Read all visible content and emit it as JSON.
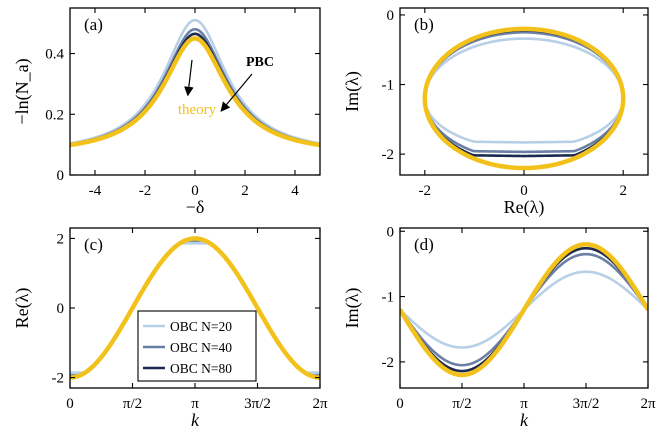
{
  "colors": {
    "n20": "#b8cfe8",
    "n40": "#6a7fa6",
    "n80": "#1b2a4e",
    "pbc": "#000000",
    "theory": "#f2c21b"
  },
  "chart_data": [
    {
      "id": "a",
      "type": "line",
      "panel_label": "(a)",
      "xlabel": "−δ",
      "ylabel": "−ln(N_a)",
      "xlim": [
        -5,
        5
      ],
      "ylim": [
        0,
        0.55
      ],
      "xticks": [
        -4,
        -2,
        0,
        2,
        4
      ],
      "xtick_labels": [
        "-4",
        "-2",
        "0",
        "2",
        "4"
      ],
      "yticks": [
        0,
        0.2,
        0.4
      ],
      "ytick_labels": [
        "0",
        "0.2",
        "0.4"
      ],
      "model": "lorentz",
      "series": [
        {
          "name": "OBC N=20",
          "color_key": "n20",
          "peak": 0.51
        },
        {
          "name": "OBC N=40",
          "color_key": "n40",
          "peak": 0.48
        },
        {
          "name": "OBC N=80",
          "color_key": "n80",
          "peak": 0.465
        },
        {
          "name": "PBC",
          "color_key": "pbc",
          "peak": 0.45,
          "dashed": true
        },
        {
          "name": "theory",
          "color_key": "theory",
          "peak": 0.45,
          "theory": true
        }
      ],
      "annotations": {
        "pbc_label": "PBC",
        "theory_label": "theory"
      }
    },
    {
      "id": "b",
      "type": "line",
      "panel_label": "(b)",
      "xlabel": "Re(λ)",
      "ylabel": "Im(λ)",
      "xlim": [
        -2.5,
        2.5
      ],
      "ylim": [
        -2.3,
        0.1
      ],
      "xticks": [
        -2,
        0,
        2
      ],
      "xtick_labels": [
        "-2",
        "0",
        "2"
      ],
      "yticks": [
        -2,
        -1,
        0
      ],
      "ytick_labels": [
        "-2",
        "-1",
        "0"
      ],
      "model": "ellipse",
      "series": [
        {
          "name": "OBC N=20",
          "color_key": "n20",
          "a": 2.0,
          "b": 0.72
        },
        {
          "name": "OBC N=40",
          "color_key": "n40",
          "a": 2.0,
          "b": 0.88
        },
        {
          "name": "OBC N=80",
          "color_key": "n80",
          "a": 2.0,
          "b": 0.95
        },
        {
          "name": "PBC",
          "color_key": "pbc",
          "a": 2.0,
          "b": 1.0,
          "dashed": true
        },
        {
          "name": "theory",
          "color_key": "theory",
          "a": 2.0,
          "b": 1.0,
          "theory": true
        }
      ]
    },
    {
      "id": "c",
      "type": "line",
      "panel_label": "(c)",
      "xlabel": "k",
      "ylabel": "Re(λ)",
      "xlim": [
        0,
        6.2832
      ],
      "ylim": [
        -2.3,
        2.3
      ],
      "xticks": [
        0,
        1.5708,
        3.1416,
        4.7124,
        6.2832
      ],
      "xtick_labels": [
        "0",
        "π/2",
        "π",
        "3π/2",
        "2π"
      ],
      "yticks": [
        -2,
        0,
        2
      ],
      "ytick_labels": [
        "-2",
        "0",
        "2"
      ],
      "model": "cosine",
      "series": [
        {
          "name": "OBC N=20",
          "color_key": "n20",
          "flat": 0.93
        },
        {
          "name": "OBC N=40",
          "color_key": "n40",
          "flat": 0.97
        },
        {
          "name": "OBC N=80",
          "color_key": "n80",
          "flat": 0.99
        },
        {
          "name": "PBC",
          "color_key": "pbc",
          "flat": 1.0,
          "dashed": true
        },
        {
          "name": "theory",
          "color_key": "theory",
          "flat": 1.0,
          "theory": true
        }
      ],
      "legend": {
        "placement": "bottom-center",
        "entries": [
          {
            "label": "OBC N=20",
            "color_key": "n20"
          },
          {
            "label": "OBC N=40",
            "color_key": "n40"
          },
          {
            "label": "OBC N=80",
            "color_key": "n80"
          }
        ]
      }
    },
    {
      "id": "d",
      "type": "line",
      "panel_label": "(d)",
      "xlabel": "k",
      "ylabel": "Im(λ)",
      "xlim": [
        0,
        6.2832
      ],
      "ylim": [
        -2.4,
        0.05
      ],
      "xticks": [
        0,
        1.5708,
        3.1416,
        4.7124,
        6.2832
      ],
      "xtick_labels": [
        "0",
        "π/2",
        "π",
        "3π/2",
        "2π"
      ],
      "yticks": [
        -2,
        -1,
        0
      ],
      "ytick_labels": [
        "-2",
        "-1",
        "0"
      ],
      "model": "sine",
      "series": [
        {
          "name": "OBC N=20",
          "color_key": "n20",
          "amp": 0.58,
          "clip": 0.6
        },
        {
          "name": "OBC N=40",
          "color_key": "n40",
          "amp": 0.85,
          "clip": 0.86
        },
        {
          "name": "OBC N=80",
          "color_key": "n80",
          "amp": 0.94,
          "clip": 0.95
        },
        {
          "name": "PBC",
          "color_key": "pbc",
          "amp": 1.0,
          "clip": 2.0,
          "dashed": true
        },
        {
          "name": "theory",
          "color_key": "theory",
          "amp": 1.0,
          "clip": 2.0,
          "theory": true
        }
      ]
    }
  ]
}
